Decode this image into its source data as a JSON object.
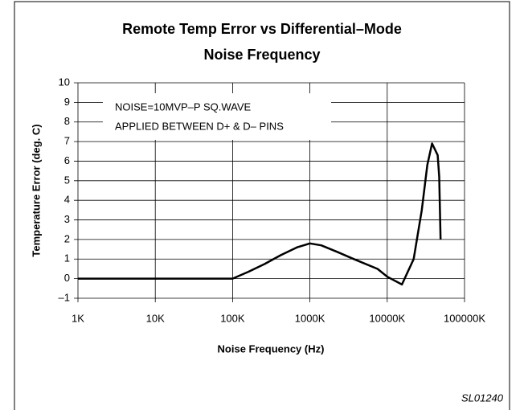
{
  "chart_data": {
    "type": "line",
    "title": [
      "Remote Temp Error vs Differential–Mode",
      "Noise Frequency"
    ],
    "xlabel": "Noise Frequency (Hz)",
    "ylabel": "Temperature Error (deg. C)",
    "annotations": [
      "NOISE=10MVP–P SQ.WAVE",
      "APPLIED BETWEEN D+ & D– PINS"
    ],
    "footer": "SL01240",
    "xscale": "log",
    "grid": true,
    "x": [
      1,
      10,
      100,
      160,
      260,
      420,
      680,
      1000,
      1400,
      2300,
      3700,
      7500,
      10000,
      15500,
      22000,
      28000,
      33000,
      38000,
      45000,
      47000,
      49000
    ],
    "series": [
      {
        "name": "Remote Temp Error",
        "color": "#000000",
        "values": [
          0,
          0,
          0,
          0.35,
          0.75,
          1.2,
          1.6,
          1.8,
          1.7,
          1.35,
          1.0,
          0.5,
          0.1,
          -0.3,
          1.0,
          3.5,
          5.8,
          6.9,
          6.3,
          5.2,
          2.0
        ]
      }
    ],
    "xlim": [
      1,
      100000
    ],
    "xticks": [
      {
        "value": 1,
        "label": "1K"
      },
      {
        "value": 10,
        "label": "10K"
      },
      {
        "value": 100,
        "label": "100K"
      },
      {
        "value": 1000,
        "label": "1000K"
      },
      {
        "value": 10000,
        "label": "10000K"
      },
      {
        "value": 100000,
        "label": "100000K"
      }
    ],
    "ylim": [
      -1,
      10
    ],
    "yticks": [
      {
        "value": -1,
        "label": "–1"
      },
      0,
      1,
      2,
      3,
      4,
      5,
      6,
      7,
      8,
      9,
      10
    ]
  }
}
